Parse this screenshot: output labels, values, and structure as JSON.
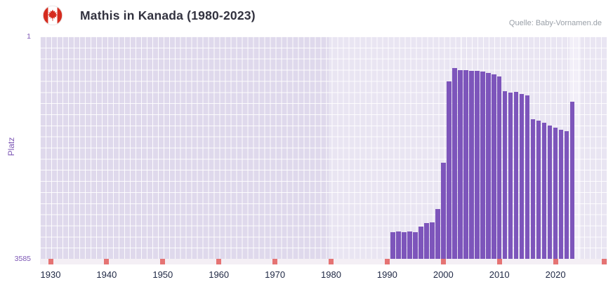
{
  "header": {
    "title": "Mathis in Kanada (1980-2023)",
    "source": "Quelle: Baby-Vornamen.de",
    "flag_icon": "canada-flag"
  },
  "chart": {
    "ylabel": "Platz",
    "y_top_label": "1",
    "y_bottom_label": "3585"
  },
  "colors": {
    "bar": "#7d55bb",
    "red_tick": "#e57373",
    "plot_bg": "#e9e5f2",
    "pre_period_bg": "#dfd9ec",
    "recent_highlight_bg": "#f2eff8"
  },
  "chart_data": {
    "type": "bar",
    "title": "Mathis in Kanada (1980-2023)",
    "xlabel": "",
    "ylabel": "Platz",
    "y_axis_inverted": true,
    "ylim": [
      1,
      3585
    ],
    "x_range": [
      1930,
      2029
    ],
    "x_ticks": [
      1930,
      1940,
      1950,
      1960,
      1970,
      1980,
      1990,
      2000,
      2010,
      2020
    ],
    "highlight_period": [
      1980,
      2023
    ],
    "grid": true,
    "legend": "none",
    "bar_color": "#7d55bb",
    "x": [
      1991,
      1992,
      1993,
      1994,
      1995,
      1996,
      1997,
      1998,
      1999,
      2000,
      2001,
      2002,
      2003,
      2004,
      2005,
      2006,
      2007,
      2008,
      2009,
      2010,
      2011,
      2012,
      2013,
      2014,
      2015,
      2016,
      2017,
      2018,
      2019,
      2020,
      2021,
      2022,
      2023
    ],
    "values": [
      3150,
      3140,
      3150,
      3140,
      3150,
      3060,
      3010,
      3000,
      2780,
      2040,
      730,
      515,
      540,
      545,
      550,
      555,
      570,
      585,
      615,
      640,
      880,
      900,
      890,
      930,
      945,
      1330,
      1355,
      1390,
      1440,
      1475,
      1505,
      1530,
      1055
    ]
  }
}
